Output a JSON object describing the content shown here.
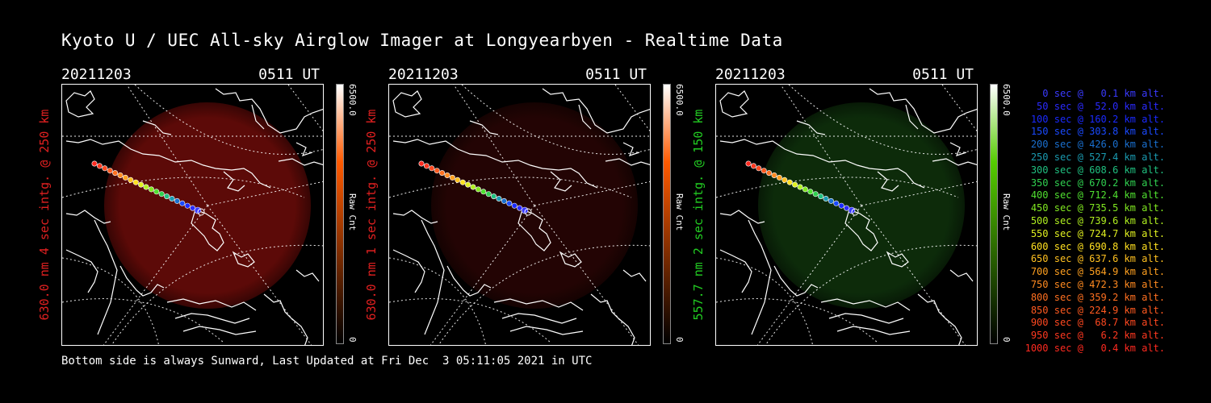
{
  "title": "Kyoto U / UEC All-sky Airglow Imager at Longyearbyen - Realtime Data",
  "panels": [
    {
      "date": "20211203",
      "time": "0511 UT",
      "label": "630.0 nm 4 sec intg. @ 250 km",
      "label_color": "#e02020",
      "glow_color": "#7a0d0a",
      "glow_opacity": 0.75,
      "cbar_top": "#ffffff",
      "cbar_mid": "#ff5a00",
      "cbar_bot": "#000000",
      "cbar_max": "6500.0",
      "cbar_unit": "Raw Cnt",
      "cbar_min": "0"
    },
    {
      "date": "20211203",
      "time": "0511 UT",
      "label": "630.0 nm 1 sec intg. @ 250 km",
      "label_color": "#e02020",
      "glow_color": "#3a0706",
      "glow_opacity": 0.6,
      "cbar_top": "#ffffff",
      "cbar_mid": "#ff5a00",
      "cbar_bot": "#000000",
      "cbar_max": "6500.0",
      "cbar_unit": "Raw Cnt",
      "cbar_min": "0"
    },
    {
      "date": "20211203",
      "time": "0511 UT",
      "label": "557.7 nm 2 sec intg. @ 150 km",
      "label_color": "#22cc22",
      "glow_color": "#10360d",
      "glow_opacity": 0.8,
      "cbar_top": "#ffffff",
      "cbar_mid": "#55cc00",
      "cbar_bot": "#000000",
      "cbar_max": "6500.0",
      "cbar_unit": "Raw Cnt",
      "cbar_min": "0"
    }
  ],
  "legend": [
    {
      "text": "0 sec @   0.1 km alt.",
      "color": "#3a3aff"
    },
    {
      "text": "50 sec @  52.0 km alt.",
      "color": "#2a2aff"
    },
    {
      "text": "100 sec @ 160.2 km alt.",
      "color": "#1a2aff"
    },
    {
      "text": "150 sec @ 303.8 km alt.",
      "color": "#1a4aff"
    },
    {
      "text": "200 sec @ 426.0 km alt.",
      "color": "#1a70d0"
    },
    {
      "text": "250 sec @ 527.4 km alt.",
      "color": "#1a9ab0"
    },
    {
      "text": "300 sec @ 608.6 km alt.",
      "color": "#20c080"
    },
    {
      "text": "350 sec @ 670.2 km alt.",
      "color": "#30d050"
    },
    {
      "text": "400 sec @ 712.4 km alt.",
      "color": "#50e030"
    },
    {
      "text": "450 sec @ 735.5 km alt.",
      "color": "#80e820"
    },
    {
      "text": "500 sec @ 739.6 km alt.",
      "color": "#b0f020"
    },
    {
      "text": "550 sec @ 724.7 km alt.",
      "color": "#e0f020"
    },
    {
      "text": "600 sec @ 690.8 km alt.",
      "color": "#ffe020"
    },
    {
      "text": "650 sec @ 637.6 km alt.",
      "color": "#ffc020"
    },
    {
      "text": "700 sec @ 564.9 km alt.",
      "color": "#ffa020"
    },
    {
      "text": "750 sec @ 472.3 km alt.",
      "color": "#ff8a20"
    },
    {
      "text": "800 sec @ 359.2 km alt.",
      "color": "#ff7020"
    },
    {
      "text": "850 sec @ 224.9 km alt.",
      "color": "#ff5a20"
    },
    {
      "text": "900 sec @  68.7 km alt.",
      "color": "#ff4820"
    },
    {
      "text": "950 sec @   6.2 km alt.",
      "color": "#ff3820"
    },
    {
      "text": "1000 sec @   0.4 km alt.",
      "color": "#ff2a20"
    }
  ],
  "footer": "Bottom side is always Sunward, Last Updated at Fri Dec  3 05:11:05 2021 in UTC"
}
